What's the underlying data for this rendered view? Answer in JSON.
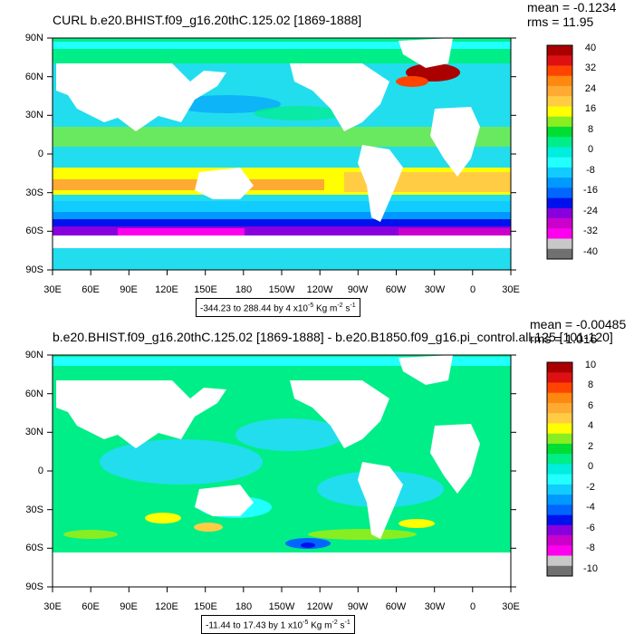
{
  "panels": [
    {
      "id": "top",
      "title": "CURL b.e20.BHIST.f09_g16.20thC.125.02 [1869-1888]",
      "mean_text": "mean = -0.1234",
      "rms_text": "rms = 11.95",
      "range_text": "-344.23 to 288.44 by 4 x10",
      "range_exp": "-5",
      "range_unit": " Kg m",
      "range_unit_exp": "-2",
      "range_unit_tail": " s",
      "range_unit_tail_exp": "-1",
      "lat_labels": [
        "90N",
        "60N",
        "30N",
        "0",
        "30S",
        "60S",
        "90S"
      ],
      "lon_labels": [
        "30E",
        "60E",
        "90E",
        "120E",
        "150E",
        "180",
        "150W",
        "120W",
        "90W",
        "60W",
        "30W",
        "0",
        "30E"
      ],
      "colorbar_labels": [
        "40",
        "32",
        "24",
        "16",
        "8",
        "0",
        "-8",
        "-16",
        "-24",
        "-32",
        "-40"
      ]
    },
    {
      "id": "bottom",
      "title": "b.e20.BHIST.f09_g16.20thC.125.02 [1869-1888] - b.e20.B1850.f09_g16.pi_control.all.125 [101-120]",
      "mean_text": "mean = -0.00485",
      "rms_text": "rms = 1.016",
      "range_text": "-11.44 to 17.43 by 1 x10",
      "range_exp": "-5",
      "range_unit": " Kg m",
      "range_unit_exp": "-2",
      "range_unit_tail": " s",
      "range_unit_tail_exp": "-1",
      "lat_labels": [
        "90N",
        "60N",
        "30N",
        "0",
        "30S",
        "60S",
        "90S"
      ],
      "lon_labels": [
        "30E",
        "60E",
        "90E",
        "120E",
        "150E",
        "180",
        "150W",
        "120W",
        "90W",
        "60W",
        "30W",
        "0",
        "30E"
      ],
      "colorbar_labels": [
        "10",
        "8",
        "6",
        "4",
        "2",
        "0",
        "-2",
        "-4",
        "-6",
        "-8",
        "-10"
      ]
    }
  ],
  "colors": {
    "ocean_base": "#22ddee",
    "land": "#ffffff",
    "colorbar": [
      "#aa0000",
      "#dd1111",
      "#ff4400",
      "#ff8811",
      "#ffaa33",
      "#ffcc44",
      "#ffff00",
      "#88ee22",
      "#00dd33",
      "#00ee88",
      "#00eedd",
      "#22ffff",
      "#11ccff",
      "#0099ff",
      "#0066ff",
      "#0011ee",
      "#8800dd",
      "#cc00cc",
      "#ff00ee",
      "#c8c8c8",
      "#707070"
    ]
  }
}
